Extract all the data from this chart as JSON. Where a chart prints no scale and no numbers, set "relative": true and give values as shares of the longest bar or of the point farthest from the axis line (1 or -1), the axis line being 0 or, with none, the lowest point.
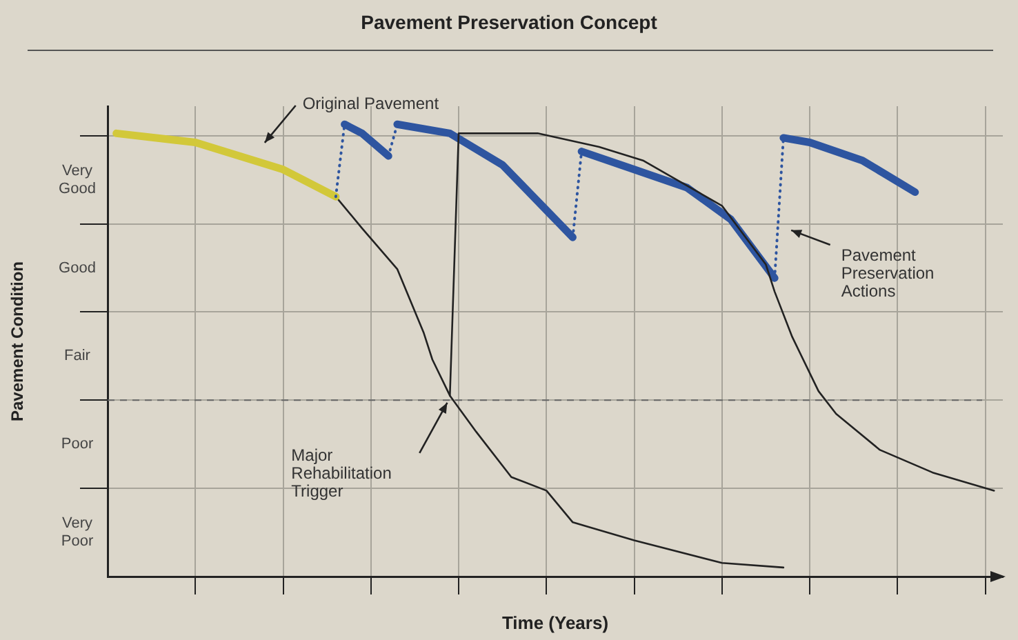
{
  "chart_data": {
    "type": "line",
    "title": "Pavement Preservation Concept",
    "xlabel": "Time (Years)",
    "ylabel": "Pavement Condition",
    "relative": true,
    "grid": true,
    "marker": "none",
    "categories": [
      null,
      null,
      null,
      null,
      null,
      null,
      null,
      null,
      null,
      null,
      null,
      null,
      null,
      null,
      null,
      null,
      null,
      null,
      null,
      null,
      null,
      null,
      null,
      null,
      null,
      null,
      null,
      null,
      null,
      null,
      null,
      null,
      null,
      null,
      null,
      null,
      null,
      null,
      null,
      null,
      null,
      null,
      null,
      null,
      null,
      null,
      null,
      null,
      null,
      null,
      null,
      null,
      null,
      null,
      null,
      null,
      null,
      null,
      null,
      null,
      null,
      null,
      null,
      null,
      null,
      null,
      null,
      null,
      null,
      null,
      null,
      null,
      null,
      null,
      null,
      null,
      null,
      null,
      null,
      null,
      null,
      null,
      null,
      null,
      null,
      null,
      null,
      null,
      null,
      null,
      null,
      null,
      null,
      null,
      null,
      null,
      null,
      null,
      null,
      null,
      null,
      null,
      null
    ],
    "series": [
      {
        "color": "#d2c83a",
        "values": [
          null,
          0.98,
          null,
          null,
          null,
          null,
          null,
          null,
          null,
          null,
          0.96,
          null,
          null,
          null,
          null,
          null,
          null,
          null,
          null,
          null,
          0.9,
          null,
          null,
          null,
          null,
          null,
          0.84,
          null,
          null,
          null,
          null,
          null,
          null,
          null,
          null,
          null,
          null,
          null,
          null,
          null,
          null,
          null,
          null,
          null,
          null,
          null,
          null,
          null,
          null,
          null,
          null,
          null,
          null,
          null,
          null,
          null,
          null,
          null,
          null,
          null,
          null,
          null,
          null,
          null,
          null,
          null,
          null,
          null,
          null,
          null,
          null,
          null,
          null,
          null,
          null,
          null,
          null,
          null,
          null,
          null,
          null,
          null,
          null,
          null,
          null,
          null,
          null,
          null,
          null,
          null,
          null,
          null,
          null,
          null,
          null,
          null,
          null,
          null,
          null,
          null,
          null,
          null,
          null
        ]
      },
      {
        "color": "#222222",
        "values": [
          null,
          null,
          null,
          null,
          null,
          null,
          null,
          null,
          null,
          null,
          null,
          null,
          null,
          null,
          null,
          null,
          null,
          null,
          null,
          null,
          null,
          null,
          null,
          null,
          null,
          null,
          0.84,
          null,
          null,
          0.77,
          null,
          null,
          null,
          0.68,
          null,
          null,
          0.54,
          0.48,
          null,
          0.4,
          null,
          null,
          0.32,
          null,
          null,
          null,
          0.22,
          null,
          null,
          null,
          0.19,
          null,
          null,
          0.12,
          null,
          null,
          null,
          null,
          null,
          null,
          0.08,
          null,
          null,
          null,
          null,
          null,
          null,
          null,
          null,
          null,
          0.03,
          null,
          null,
          null,
          null,
          null,
          null,
          0.02,
          null,
          null,
          null,
          null,
          null,
          null,
          null,
          null,
          null,
          null,
          null,
          null,
          null,
          null,
          null,
          null,
          null,
          null,
          null,
          null,
          null,
          null,
          null,
          null,
          null
        ]
      },
      {
        "color": "#222222",
        "values": [
          null,
          null,
          null,
          null,
          null,
          null,
          null,
          null,
          null,
          null,
          null,
          null,
          null,
          null,
          null,
          null,
          null,
          null,
          null,
          null,
          null,
          null,
          null,
          null,
          null,
          null,
          null,
          null,
          null,
          null,
          null,
          null,
          null,
          null,
          null,
          null,
          null,
          null,
          null,
          0.4,
          0.98,
          null,
          null,
          null,
          null,
          null,
          null,
          null,
          null,
          0.98,
          null,
          null,
          null,
          null,
          null,
          null,
          0.95,
          null,
          null,
          null,
          null,
          0.92,
          null,
          null,
          null,
          null,
          null,
          null,
          null,
          null,
          0.82,
          null,
          null,
          null,
          null,
          0.69,
          0.63,
          null,
          0.53,
          null,
          null,
          0.41,
          null,
          0.36,
          null,
          null,
          null,
          null,
          0.28,
          null,
          null,
          null,
          null,
          null,
          0.23,
          null,
          null,
          null,
          null,
          null,
          null,
          0.19,
          null
        ]
      },
      {
        "color": "#2e55a0",
        "values": [
          null,
          null,
          null,
          null,
          null,
          null,
          null,
          null,
          null,
          null,
          null,
          null,
          null,
          null,
          null,
          null,
          null,
          null,
          null,
          null,
          null,
          null,
          null,
          null,
          null,
          null,
          null,
          1,
          null,
          0.98,
          null,
          null,
          0.93,
          null,
          null,
          null,
          null,
          null,
          null,
          null,
          null,
          null,
          null,
          null,
          null,
          null,
          null,
          null,
          null,
          null,
          null,
          null,
          null,
          null,
          null,
          null,
          null,
          null,
          null,
          null,
          null,
          null,
          null,
          null,
          null,
          null,
          null,
          null,
          null,
          null,
          null,
          null,
          null,
          null,
          null,
          null,
          null,
          null,
          null,
          null,
          null,
          null,
          null,
          null,
          null,
          null,
          null,
          null,
          null,
          null,
          null,
          null,
          null,
          null,
          null,
          null,
          null,
          null,
          null,
          null,
          null,
          null,
          null
        ]
      },
      {
        "color": "#2e55a0",
        "values": [
          null,
          null,
          null,
          null,
          null,
          null,
          null,
          null,
          null,
          null,
          null,
          null,
          null,
          null,
          null,
          null,
          null,
          null,
          null,
          null,
          null,
          null,
          null,
          null,
          null,
          null,
          null,
          null,
          null,
          null,
          null,
          null,
          null,
          1,
          null,
          null,
          null,
          null,
          null,
          0.98,
          null,
          null,
          null,
          null,
          null,
          0.91,
          null,
          null,
          null,
          null,
          null,
          null,
          null,
          0.75,
          null,
          null,
          null,
          null,
          null,
          null,
          null,
          null,
          null,
          null,
          null,
          null,
          null,
          null,
          null,
          null,
          null,
          null,
          null,
          null,
          null,
          null,
          null,
          null,
          null,
          null,
          null,
          null,
          null,
          null,
          null,
          null,
          null,
          null,
          null,
          null,
          null,
          null,
          null,
          null,
          null,
          null,
          null,
          null,
          null,
          null,
          null,
          null,
          null
        ]
      },
      {
        "color": "#2e55a0",
        "values": [
          null,
          null,
          null,
          null,
          null,
          null,
          null,
          null,
          null,
          null,
          null,
          null,
          null,
          null,
          null,
          null,
          null,
          null,
          null,
          null,
          null,
          null,
          null,
          null,
          null,
          null,
          null,
          null,
          null,
          null,
          null,
          null,
          null,
          null,
          null,
          null,
          null,
          null,
          null,
          null,
          null,
          null,
          null,
          null,
          null,
          null,
          null,
          null,
          null,
          null,
          null,
          null,
          null,
          null,
          0.94,
          null,
          null,
          null,
          null,
          null,
          0.9,
          null,
          null,
          null,
          null,
          null,
          0.86,
          null,
          null,
          null,
          null,
          0.79,
          null,
          null,
          null,
          null,
          0.66,
          null,
          null,
          null,
          null,
          null,
          null,
          null,
          null,
          null,
          null,
          null,
          null,
          null,
          null,
          null,
          null,
          null,
          null,
          null,
          null,
          null,
          null,
          null,
          null,
          null,
          null
        ]
      },
      {
        "color": "#2e55a0",
        "values": [
          null,
          null,
          null,
          null,
          null,
          null,
          null,
          null,
          null,
          null,
          null,
          null,
          null,
          null,
          null,
          null,
          null,
          null,
          null,
          null,
          null,
          null,
          null,
          null,
          null,
          null,
          null,
          null,
          null,
          null,
          null,
          null,
          null,
          null,
          null,
          null,
          null,
          null,
          null,
          null,
          null,
          null,
          null,
          null,
          null,
          null,
          null,
          null,
          null,
          null,
          null,
          null,
          null,
          null,
          null,
          null,
          null,
          null,
          null,
          null,
          null,
          null,
          null,
          null,
          null,
          null,
          null,
          null,
          null,
          null,
          null,
          null,
          null,
          null,
          null,
          null,
          null,
          0.97,
          null,
          null,
          0.96,
          null,
          null,
          null,
          null,
          null,
          0.92,
          null,
          null,
          null,
          null,
          null,
          0.85,
          null,
          null,
          null,
          null,
          null,
          null,
          null,
          null,
          null,
          null
        ]
      },
      {
        "color": "#2e55a0",
        "line_style": "dotted",
        "values": [
          null,
          null,
          null,
          null,
          null,
          null,
          null,
          null,
          null,
          null,
          null,
          null,
          null,
          null,
          null,
          null,
          null,
          null,
          null,
          null,
          null,
          null,
          null,
          null,
          null,
          null,
          0.84,
          1,
          null,
          null,
          null,
          null,
          null,
          null,
          null,
          null,
          null,
          null,
          null,
          null,
          null,
          null,
          null,
          null,
          null,
          null,
          null,
          null,
          null,
          null,
          null,
          null,
          null,
          null,
          null,
          null,
          null,
          null,
          null,
          null,
          null,
          null,
          null,
          null,
          null,
          null,
          null,
          null,
          null,
          null,
          null,
          null,
          null,
          null,
          null,
          null,
          null,
          null,
          null,
          null,
          null,
          null,
          null,
          null,
          null,
          null,
          null,
          null,
          null,
          null,
          null,
          null,
          null,
          null,
          null,
          null,
          null,
          null,
          null,
          null,
          null,
          null,
          null
        ]
      },
      {
        "color": "#2e55a0",
        "line_style": "dotted",
        "values": [
          null,
          null,
          null,
          null,
          null,
          null,
          null,
          null,
          null,
          null,
          null,
          null,
          null,
          null,
          null,
          null,
          null,
          null,
          null,
          null,
          null,
          null,
          null,
          null,
          null,
          null,
          null,
          null,
          null,
          null,
          null,
          null,
          0.93,
          1,
          null,
          null,
          null,
          null,
          null,
          null,
          null,
          null,
          null,
          null,
          null,
          null,
          null,
          null,
          null,
          null,
          null,
          null,
          null,
          null,
          null,
          null,
          null,
          null,
          null,
          null,
          null,
          null,
          null,
          null,
          null,
          null,
          null,
          null,
          null,
          null,
          null,
          null,
          null,
          null,
          null,
          null,
          null,
          null,
          null,
          null,
          null,
          null,
          null,
          null,
          null,
          null,
          null,
          null,
          null,
          null,
          null,
          null,
          null,
          null,
          null,
          null,
          null,
          null,
          null,
          null,
          null,
          null,
          null
        ]
      },
      {
        "color": "#2e55a0",
        "line_style": "dotted",
        "values": [
          null,
          null,
          null,
          null,
          null,
          null,
          null,
          null,
          null,
          null,
          null,
          null,
          null,
          null,
          null,
          null,
          null,
          null,
          null,
          null,
          null,
          null,
          null,
          null,
          null,
          null,
          null,
          null,
          null,
          null,
          null,
          null,
          null,
          null,
          null,
          null,
          null,
          null,
          null,
          null,
          null,
          null,
          null,
          null,
          null,
          null,
          null,
          null,
          null,
          null,
          null,
          null,
          null,
          0.75,
          0.94,
          null,
          null,
          null,
          null,
          null,
          null,
          null,
          null,
          null,
          null,
          null,
          null,
          null,
          null,
          null,
          null,
          null,
          null,
          null,
          null,
          null,
          null,
          null,
          null,
          null,
          null,
          null,
          null,
          null,
          null,
          null,
          null,
          null,
          null,
          null,
          null,
          null,
          null,
          null,
          null,
          null,
          null,
          null,
          null,
          null,
          null,
          null,
          null
        ]
      },
      {
        "color": "#2e55a0",
        "line_style": "dotted",
        "values": [
          null,
          null,
          null,
          null,
          null,
          null,
          null,
          null,
          null,
          null,
          null,
          null,
          null,
          null,
          null,
          null,
          null,
          null,
          null,
          null,
          null,
          null,
          null,
          null,
          null,
          null,
          null,
          null,
          null,
          null,
          null,
          null,
          null,
          null,
          null,
          null,
          null,
          null,
          null,
          null,
          null,
          null,
          null,
          null,
          null,
          null,
          null,
          null,
          null,
          null,
          null,
          null,
          null,
          null,
          null,
          null,
          null,
          null,
          null,
          null,
          null,
          null,
          null,
          null,
          null,
          null,
          null,
          null,
          null,
          null,
          null,
          null,
          null,
          null,
          null,
          null,
          0.66,
          0.97,
          null,
          null,
          null,
          null,
          null,
          null,
          null,
          null,
          null,
          null,
          null,
          null,
          null,
          null,
          null,
          null,
          null,
          null,
          null,
          null,
          null,
          null,
          null,
          null,
          null
        ]
      }
    ],
    "ref_lines": [
      {
        "axis": "y",
        "value": 0.39,
        "color": "#666666",
        "line_style": "dashed"
      }
    ],
    "annotations": [
      "Very Good",
      "Good",
      "Fair",
      "Poor",
      "Very Poor",
      "Original Pavement",
      "Major Rehabilitation Trigger",
      "Pavement Preservation Actions"
    ]
  }
}
